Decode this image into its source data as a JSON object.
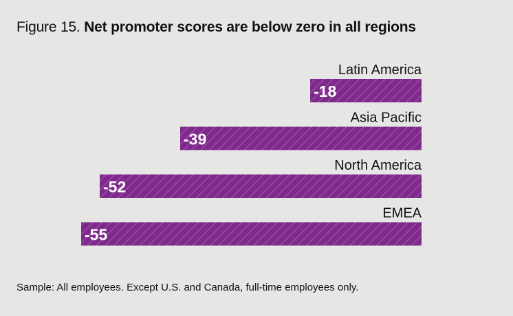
{
  "figure_label": "Figure 15.",
  "title": "Net promoter scores are below zero in all regions",
  "footnote": "Sample: All employees. Except U.S. and Canada, full-time employees only.",
  "colors": {
    "bar": "#7d2a8a",
    "hatch": "#8f3d9c",
    "background": "#e6e6e4"
  },
  "chart_data": {
    "type": "bar",
    "orientation": "horizontal",
    "categories": [
      "Latin America",
      "Asia Pacific",
      "North America",
      "EMEA"
    ],
    "values": [
      -18,
      -39,
      -52,
      -55
    ],
    "value_labels": [
      "-18",
      "-39",
      "-52",
      "-55"
    ],
    "title": "Figure 15. Net promoter scores are below zero in all regions",
    "xlim": [
      -60,
      0
    ],
    "grid": false,
    "legend": "none"
  }
}
